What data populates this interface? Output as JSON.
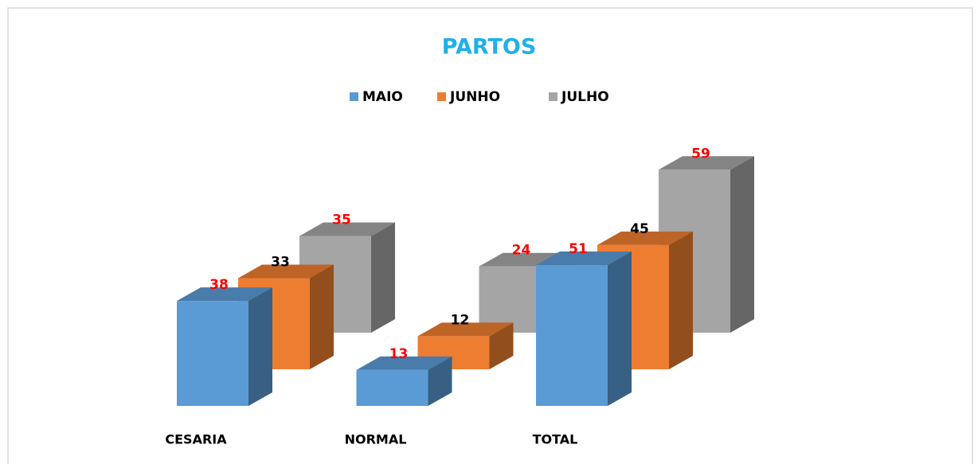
{
  "chart_data": {
    "type": "bar3d",
    "title": "PARTOS",
    "categories": [
      "CESARIA",
      "NORMAL",
      "TOTAL"
    ],
    "series": [
      {
        "name": "MAIO",
        "color": "#5b9bd5",
        "label_color": "#ff0000",
        "values": [
          38,
          13,
          51
        ]
      },
      {
        "name": "JUNHO",
        "color": "#ed7d31",
        "label_color": "#000000",
        "values": [
          33,
          12,
          45
        ]
      },
      {
        "name": "JULHO",
        "color": "#a5a5a5",
        "label_color": "#ff0000",
        "values": [
          35,
          24,
          59
        ]
      }
    ],
    "title_color": "#1fb0e8",
    "legend": "top"
  }
}
